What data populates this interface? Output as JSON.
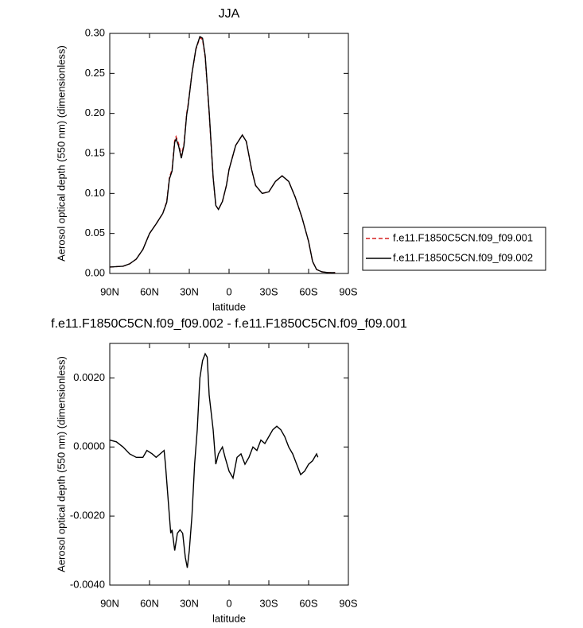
{
  "chart_data": [
    {
      "type": "line",
      "title": "JJA",
      "xlabel": "latitude",
      "ylabel": "Aerosol optical depth (550 nm) (dimensionless)",
      "x": [
        90,
        80,
        75,
        70,
        65,
        60,
        55,
        50,
        47,
        45,
        43,
        41,
        40,
        38,
        36,
        34,
        32,
        31,
        28,
        25,
        22,
        20,
        18,
        15,
        12,
        10,
        8,
        5,
        2,
        0,
        -5,
        -10,
        -13,
        -17,
        -20,
        -25,
        -30,
        -35,
        -40,
        -45,
        -50,
        -55,
        -60,
        -63,
        -66,
        -70,
        -75,
        -80
      ],
      "series": [
        {
          "name": "f.e11.F1850C5CN.f09_f09.001",
          "color": "#d62020",
          "dash": "dashed",
          "values": [
            0.008,
            0.009,
            0.012,
            0.018,
            0.03,
            0.05,
            0.062,
            0.075,
            0.09,
            0.12,
            0.13,
            0.167,
            0.171,
            0.162,
            0.147,
            0.162,
            0.2,
            0.21,
            0.25,
            0.28,
            0.295,
            0.292,
            0.27,
            0.2,
            0.12,
            0.085,
            0.08,
            0.09,
            0.11,
            0.13,
            0.16,
            0.173,
            0.165,
            0.13,
            0.11,
            0.1,
            0.102,
            0.115,
            0.122,
            0.115,
            0.095,
            0.07,
            0.04,
            0.015,
            0.005,
            0.002,
            0.001,
            0.001
          ]
        },
        {
          "name": "f.e11.F1850C5CN.f09_f09.002",
          "color": "#000000",
          "dash": "solid",
          "values": [
            0.008,
            0.009,
            0.012,
            0.018,
            0.03,
            0.05,
            0.062,
            0.075,
            0.089,
            0.118,
            0.128,
            0.164,
            0.168,
            0.159,
            0.144,
            0.16,
            0.198,
            0.208,
            0.25,
            0.281,
            0.296,
            0.294,
            0.272,
            0.202,
            0.12,
            0.085,
            0.08,
            0.09,
            0.11,
            0.13,
            0.16,
            0.173,
            0.165,
            0.13,
            0.11,
            0.1,
            0.102,
            0.115,
            0.122,
            0.115,
            0.095,
            0.07,
            0.04,
            0.015,
            0.005,
            0.002,
            0.001,
            0.001
          ]
        }
      ],
      "xlim": [
        90,
        -90
      ],
      "xticks": [
        {
          "value": 90,
          "label": "90N"
        },
        {
          "value": 60,
          "label": "60N"
        },
        {
          "value": 30,
          "label": "30N"
        },
        0,
        {
          "value": -30,
          "label": "30S"
        },
        {
          "value": -60,
          "label": "60S"
        },
        {
          "value": -90,
          "label": "90S"
        }
      ],
      "ylim": [
        0,
        0.3
      ],
      "yticks": [
        {
          "value": 0,
          "label": "0.00"
        },
        {
          "value": 0.05,
          "label": "0.05"
        },
        {
          "value": 0.1,
          "label": "0.10"
        },
        {
          "value": 0.15,
          "label": "0.15"
        },
        {
          "value": 0.2,
          "label": "0.20"
        },
        {
          "value": 0.25,
          "label": "0.25"
        },
        {
          "value": 0.3,
          "label": "0.30"
        }
      ],
      "legend": "outside-right"
    },
    {
      "type": "line",
      "title": "f.e11.F1850C5CN.f09_f09.002 - f.e11.F1850C5CN.f09_f09.001",
      "xlabel": "latitude",
      "ylabel": "Aerosol optical depth (550 nm) (dimensionless)",
      "x": [
        90,
        85,
        80,
        75,
        70,
        65,
        62,
        58,
        55,
        52,
        49,
        48,
        46,
        44,
        43,
        41,
        39,
        37,
        35,
        33,
        31.5,
        30,
        28,
        26,
        24,
        22,
        20,
        18,
        16.5,
        15,
        12,
        10,
        8,
        5,
        3,
        0,
        -3,
        -6,
        -9,
        -12,
        -15,
        -18,
        -21,
        -24,
        -27,
        -30,
        -33,
        -36,
        -39,
        -42,
        -45,
        -48,
        -51,
        -54,
        -57,
        -60,
        -63,
        -66,
        -67
      ],
      "values": [
        0.0002,
        0.00015,
        0.0,
        -0.0002,
        -0.0003,
        -0.0003,
        -0.0001,
        -0.0002,
        -0.0003,
        -0.0002,
        -0.0001,
        -0.0005,
        -0.0015,
        -0.0025,
        -0.0024,
        -0.003,
        -0.0025,
        -0.0024,
        -0.0025,
        -0.0032,
        -0.0035,
        -0.003,
        -0.002,
        -0.0005,
        0.0005,
        0.002,
        0.0025,
        0.0027,
        0.0026,
        0.0015,
        0.0005,
        -0.0005,
        -0.0002,
        0.0,
        -0.0003,
        -0.0007,
        -0.0009,
        -0.0003,
        -0.0002,
        -0.0005,
        -0.0003,
        0.0,
        -0.0001,
        0.0002,
        0.0001,
        0.0003,
        0.0005,
        0.0006,
        0.0005,
        0.0003,
        0.0,
        -0.0002,
        -0.0005,
        -0.0008,
        -0.0007,
        -0.0005,
        -0.0004,
        -0.0002,
        -0.0003
      ],
      "color": "#000000",
      "xlim": [
        90,
        -90
      ],
      "xticks": [
        {
          "value": 90,
          "label": "90N"
        },
        {
          "value": 60,
          "label": "60N"
        },
        {
          "value": 30,
          "label": "30N"
        },
        0,
        {
          "value": -30,
          "label": "30S"
        },
        {
          "value": -60,
          "label": "60S"
        },
        {
          "value": -90,
          "label": "90S"
        }
      ],
      "ylim": [
        -0.004,
        0.003
      ],
      "yticks": [
        {
          "value": -0.004,
          "label": "-0.0040"
        },
        {
          "value": -0.002,
          "label": "-0.0020"
        },
        {
          "value": 0,
          "label": "0.0000"
        },
        {
          "value": 0.002,
          "label": "0.0020"
        }
      ]
    }
  ]
}
